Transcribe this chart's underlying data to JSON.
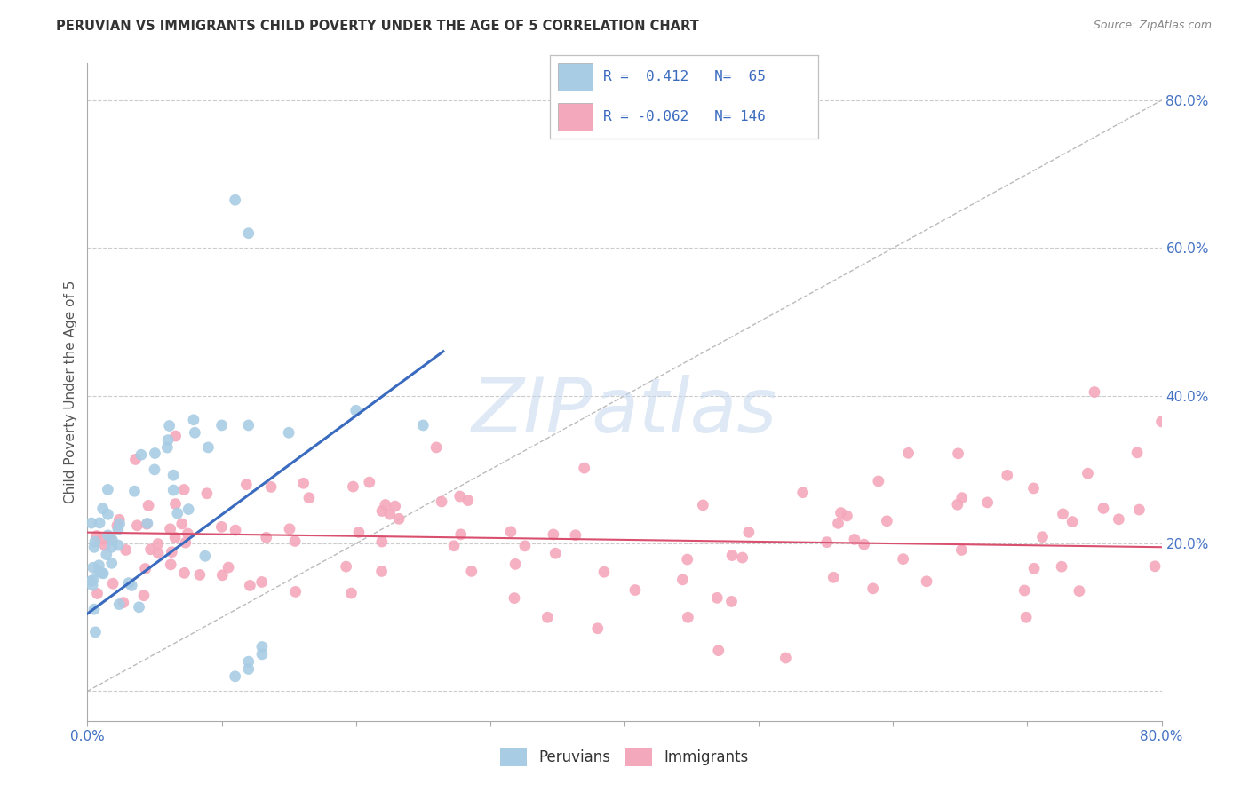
{
  "title": "PERUVIAN VS IMMIGRANTS CHILD POVERTY UNDER THE AGE OF 5 CORRELATION CHART",
  "source": "Source: ZipAtlas.com",
  "ylabel": "Child Poverty Under the Age of 5",
  "xlim": [
    0.0,
    0.8
  ],
  "ylim": [
    -0.04,
    0.85
  ],
  "ytick_positions": [
    0.0,
    0.2,
    0.4,
    0.6,
    0.8
  ],
  "ytick_labels_right": [
    "",
    "20.0%",
    "40.0%",
    "60.0%",
    "80.0%"
  ],
  "blue_color": "#a8cce4",
  "pink_color": "#f4a8bc",
  "blue_line_color": "#3a6bbf",
  "pink_line_color": "#d94f6e",
  "diagonal_color": "#bbbbbb",
  "background_color": "#ffffff",
  "grid_color": "#cccccc",
  "blue_line_x": [
    0.0,
    0.265
  ],
  "blue_line_y": [
    0.105,
    0.46
  ],
  "pink_line_x": [
    0.0,
    0.8
  ],
  "pink_line_y": [
    0.215,
    0.195
  ],
  "watermark_text": "ZIPatlas",
  "watermark_color": "#c5d8ee",
  "legend_line1": "R =  0.412   N=  65",
  "legend_line2": "R = -0.062   N= 146"
}
